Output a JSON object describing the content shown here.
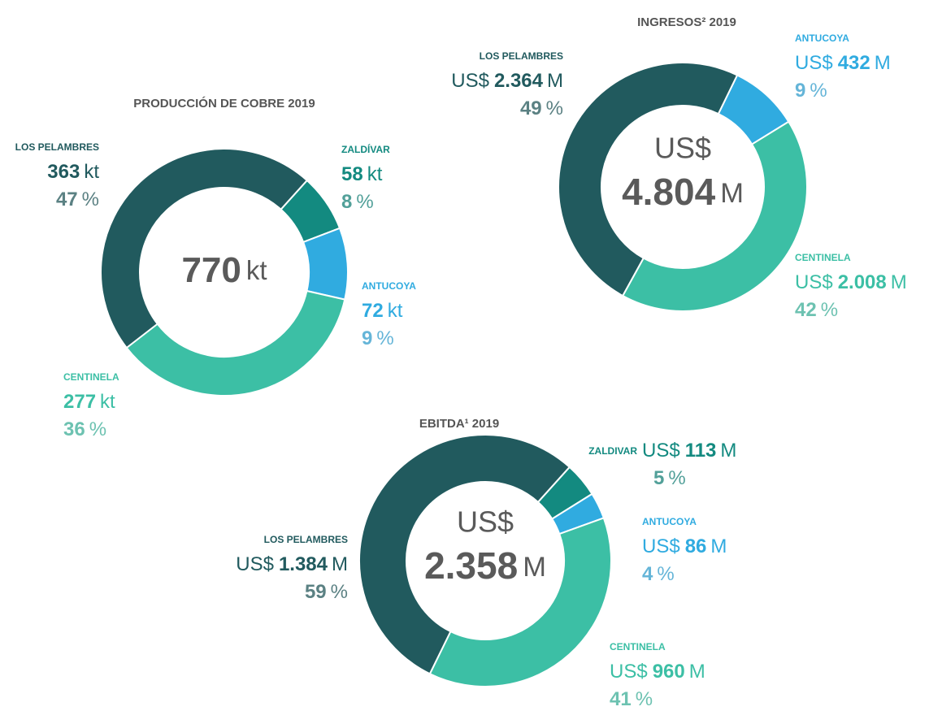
{
  "chart_data": [
    {
      "type": "pie",
      "title": "PRODUCCIÓN DE COBRE 2019",
      "unit": "kt",
      "total": 770,
      "percent_sign": "%",
      "categories": [
        "ZALDÍVAR",
        "ANTUCOYA",
        "CENTINELA",
        "LOS PELAMBRES"
      ],
      "values": [
        58,
        72,
        277,
        363
      ],
      "percents": [
        8,
        9,
        36,
        47
      ],
      "colors": [
        "#138a80",
        "#30abe0",
        "#3cbfa5",
        "#215a5e"
      ]
    },
    {
      "type": "pie",
      "title": "INGRESOS² 2019",
      "currency": "US$",
      "unit": "M",
      "total": 4804,
      "total_label": "4.804",
      "percent_sign": "%",
      "categories": [
        "ANTUCOYA",
        "CENTINELA",
        "LOS PELAMBRES"
      ],
      "values": [
        432,
        2008,
        2364
      ],
      "value_labels": [
        "432",
        "2.008",
        "2.364"
      ],
      "percents": [
        9,
        42,
        49
      ],
      "colors": [
        "#30abe0",
        "#3cbfa5",
        "#215a5e"
      ]
    },
    {
      "type": "pie",
      "title": "EBITDA¹ 2019",
      "currency": "US$",
      "unit": "M",
      "total": 2358,
      "total_label": "2.358",
      "percent_sign": "%",
      "categories": [
        "ZALDIVAR",
        "ANTUCOYA",
        "CENTINELA",
        "LOS PELAMBRES"
      ],
      "values": [
        113,
        86,
        960,
        1384
      ],
      "value_labels": [
        "113",
        "86",
        "960",
        "1.384"
      ],
      "percents": [
        5,
        4,
        41,
        59
      ],
      "colors": [
        "#138a80",
        "#30abe0",
        "#3cbfa5",
        "#215a5e"
      ]
    }
  ]
}
